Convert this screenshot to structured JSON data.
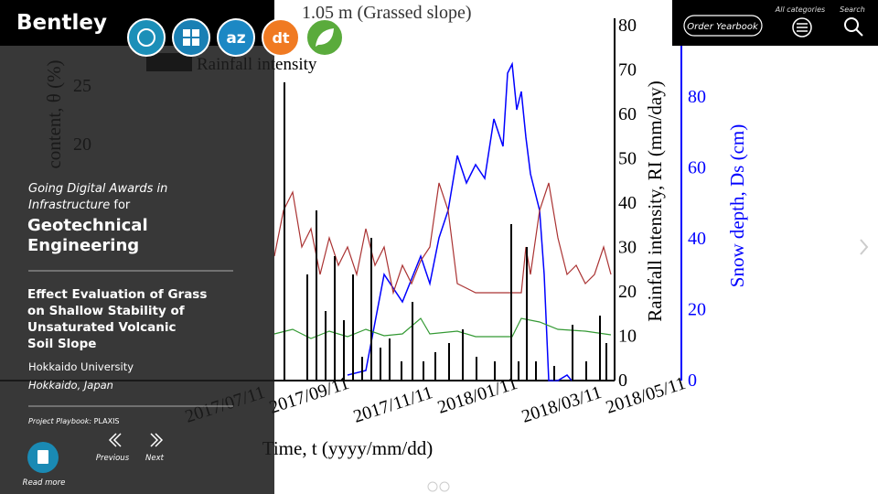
{
  "header": {
    "logo": "Bentley",
    "order_button": "Order Yearbook",
    "all_categories": "All categories",
    "search": "Search",
    "icon_labels": [
      "az",
      "dt"
    ]
  },
  "panel": {
    "award_line1": "Going Digital Awards in",
    "award_line2_italic": "Infrastructure",
    "award_line2_rest": "for",
    "category_lines": [
      "Geotechnical",
      "Engineering"
    ],
    "project_title_lines": [
      "Effect Evaluation of Grass",
      "on Shallow Stability of",
      "Unsaturated Volcanic",
      "Soil Slope"
    ],
    "organization": "Hokkaido University",
    "location": "Hokkaido, Japan",
    "playbook_label": "Project Playbook:",
    "playbook_value": "PLAXIS",
    "read_more": "Read more",
    "previous": "Previous",
    "next": "Next"
  },
  "background_figure": {
    "title_fragment": "1.05 m (Grassed slope)",
    "legend": "Rainfall intensity",
    "rainfall_axis_label": "Rainfall intensity, RI (mm/day)",
    "snow_axis_label": "Snow depth, Ds (cm)",
    "x_axis_label": "Time, t (yyyy/mm/dd)",
    "left_axis_label": "content, θ (%)",
    "left_ticks": [
      25,
      20
    ],
    "rainfall_ticks": [
      0,
      10,
      20,
      30,
      40,
      50,
      60,
      70,
      80
    ],
    "snow_ticks": [
      0,
      20,
      40,
      60,
      80
    ],
    "dates": [
      "2017/07/11",
      "2017/09/11",
      "2017/11/11",
      "2018/01/11",
      "2018/03/11",
      "2018/05/11"
    ]
  }
}
